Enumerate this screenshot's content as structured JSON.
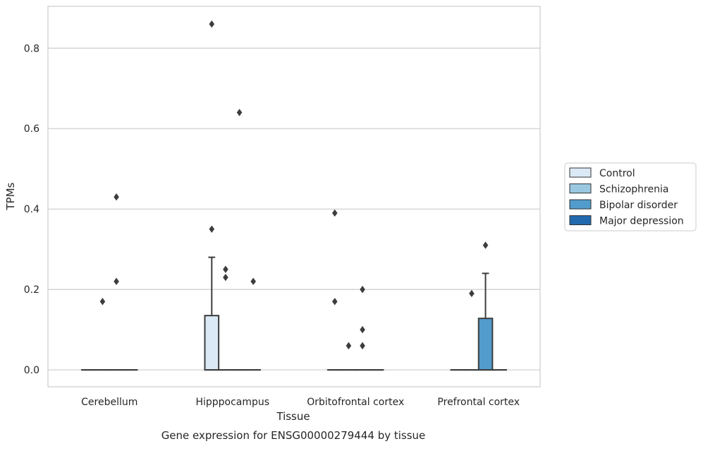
{
  "caption": "Gene expression for ENSG00000279444 by tissue",
  "chart_data": {
    "type": "box",
    "xlabel": "Tissue",
    "ylabel": "TPMs",
    "ylim": [
      -0.042,
      0.904
    ],
    "yticks": [
      0.0,
      0.2,
      0.4,
      0.6,
      0.8
    ],
    "ytick_labels": [
      "0.0",
      "0.2",
      "0.4",
      "0.6",
      "0.8"
    ],
    "grid": "horizontal",
    "legend_position": "right",
    "categories": [
      "Cerebellum",
      "Hipppocampus",
      "Orbitofrontal cortex",
      "Prefrontal cortex"
    ],
    "series": [
      {
        "name": "Control",
        "color": "#dbe9f6"
      },
      {
        "name": "Schizophrenia",
        "color": "#9ac8e0"
      },
      {
        "name": "Bipolar disorder",
        "color": "#519ccc"
      },
      {
        "name": "Major depression",
        "color": "#2269ad"
      }
    ],
    "boxes": [
      {
        "category": 0,
        "series": 0,
        "q1": 0,
        "median": 0,
        "q3": 0,
        "whisker_low": 0,
        "whisker_high": 0,
        "outliers": []
      },
      {
        "category": 0,
        "series": 1,
        "q1": 0,
        "median": 0,
        "q3": 0,
        "whisker_low": 0,
        "whisker_high": 0,
        "outliers": [
          0.17
        ]
      },
      {
        "category": 0,
        "series": 2,
        "q1": 0,
        "median": 0,
        "q3": 0,
        "whisker_low": 0,
        "whisker_high": 0,
        "outliers": [
          0.43,
          0.22
        ]
      },
      {
        "category": 0,
        "series": 3,
        "q1": 0,
        "median": 0,
        "q3": 0,
        "whisker_low": 0,
        "whisker_high": 0,
        "outliers": []
      },
      {
        "category": 1,
        "series": 0,
        "q1": 0,
        "median": 0,
        "q3": 0.135,
        "whisker_low": 0,
        "whisker_high": 0.28,
        "outliers": [
          0.86,
          0.35
        ]
      },
      {
        "category": 1,
        "series": 1,
        "q1": 0,
        "median": 0,
        "q3": 0,
        "whisker_low": 0,
        "whisker_high": 0,
        "outliers": [
          0.25,
          0.23
        ]
      },
      {
        "category": 1,
        "series": 2,
        "q1": 0,
        "median": 0,
        "q3": 0,
        "whisker_low": 0,
        "whisker_high": 0,
        "outliers": [
          0.64
        ]
      },
      {
        "category": 1,
        "series": 3,
        "q1": 0,
        "median": 0,
        "q3": 0,
        "whisker_low": 0,
        "whisker_high": 0,
        "outliers": [
          0.22
        ]
      },
      {
        "category": 2,
        "series": 0,
        "q1": 0,
        "median": 0,
        "q3": 0,
        "whisker_low": 0,
        "whisker_high": 0,
        "outliers": [
          0.39,
          0.17
        ]
      },
      {
        "category": 2,
        "series": 1,
        "q1": 0,
        "median": 0,
        "q3": 0,
        "whisker_low": 0,
        "whisker_high": 0,
        "outliers": [
          0.06
        ]
      },
      {
        "category": 2,
        "series": 2,
        "q1": 0,
        "median": 0,
        "q3": 0,
        "whisker_low": 0,
        "whisker_high": 0,
        "outliers": [
          0.2,
          0.1,
          0.06
        ]
      },
      {
        "category": 2,
        "series": 3,
        "q1": 0,
        "median": 0,
        "q3": 0,
        "whisker_low": 0,
        "whisker_high": 0,
        "outliers": []
      },
      {
        "category": 3,
        "series": 0,
        "q1": 0,
        "median": 0,
        "q3": 0,
        "whisker_low": 0,
        "whisker_high": 0,
        "outliers": []
      },
      {
        "category": 3,
        "series": 1,
        "q1": 0,
        "median": 0,
        "q3": 0,
        "whisker_low": 0,
        "whisker_high": 0,
        "outliers": [
          0.19
        ]
      },
      {
        "category": 3,
        "series": 2,
        "q1": 0,
        "median": 0,
        "q3": 0.128,
        "whisker_low": 0,
        "whisker_high": 0.24,
        "outliers": [
          0.31
        ]
      },
      {
        "category": 3,
        "series": 3,
        "q1": 0,
        "median": 0,
        "q3": 0,
        "whisker_low": 0,
        "whisker_high": 0,
        "outliers": []
      }
    ]
  }
}
